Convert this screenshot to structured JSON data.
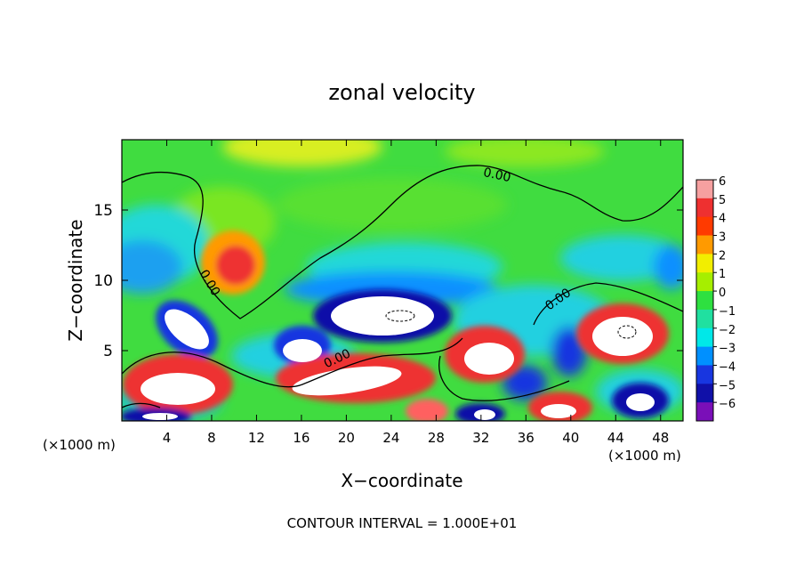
{
  "chart_data": {
    "type": "heatmap",
    "title": "zonal velocity",
    "xlabel": "X−coordinate",
    "ylabel": "Z−coordinate",
    "x_unit_left": "(×1000 m)",
    "x_unit_right": "(×1000 m)",
    "xlim": [
      0,
      50
    ],
    "ylim": [
      0,
      20
    ],
    "x_ticks": [
      4,
      8,
      12,
      16,
      20,
      24,
      28,
      32,
      36,
      40,
      44,
      48
    ],
    "y_ticks": [
      5,
      10,
      15
    ],
    "colorbar": {
      "levels": [
        6,
        5,
        4,
        3,
        2,
        1,
        0,
        -1,
        -2,
        -3,
        -4,
        -5,
        -6
      ],
      "labels": [
        "6",
        "5",
        "4",
        "3",
        "2",
        "1",
        "0",
        "−1",
        "−2",
        "−3",
        "−4",
        "−5",
        "−6"
      ],
      "colors": [
        "#f6a0a0",
        "#ee3030",
        "#ff3a00",
        "#ff9a00",
        "#f2ee00",
        "#a6ee00",
        "#2ee040",
        "#20e0a0",
        "#00e8e8",
        "#0090ff",
        "#1836e0",
        "#1010a8",
        "#7a0fb8"
      ]
    },
    "contour_labels": [
      "0.00",
      "0.00",
      "0.00",
      "0.00"
    ],
    "footer": "CONTOUR INTERVAL = 1.000E+01",
    "saturated_color": "#ffffff"
  }
}
